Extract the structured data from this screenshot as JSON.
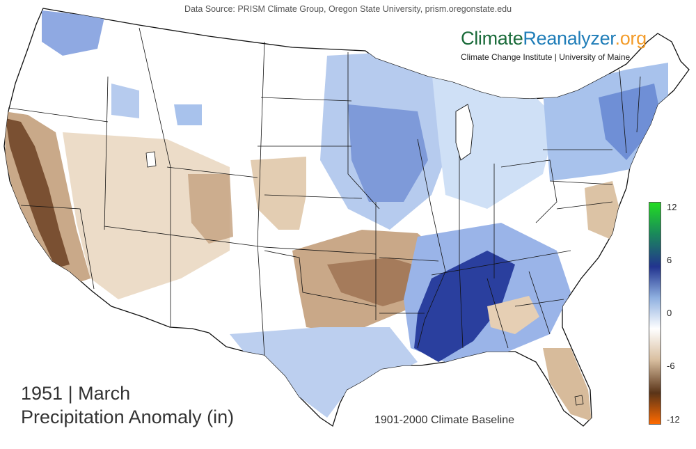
{
  "header": {
    "data_source": "Data Source: PRISM Climate Group, Oregon State University, prism.oregonstate.edu"
  },
  "brand": {
    "part1": "Climate",
    "part2": "Reanalyzer",
    "part3": ".org",
    "subtitle": "Climate Change Institute | University of Maine",
    "colors": {
      "climate": "#1a6b3a",
      "reanalyzer": "#1f7db8",
      "org": "#f39c2a"
    }
  },
  "titles": {
    "year_month": "1951 | March",
    "variable": "Precipitation Anomaly (in)",
    "baseline": "1901-2000 Climate Baseline"
  },
  "colorbar": {
    "ticks": [
      "12",
      "6",
      "0",
      "-6",
      "-12"
    ],
    "colors_top_to_bottom": [
      "#22dd22",
      "#1a8a5a",
      "#22348f",
      "#8fb0e0",
      "#ffffff",
      "#d9bfa0",
      "#5a3418",
      "#ff6a00"
    ]
  },
  "map": {
    "region": "Contiguous United States",
    "anomaly_colors": {
      "wet_strong": "#2a3f9e",
      "wet": "#6f8fd6",
      "wet_light": "#cfe0f6",
      "neutral": "#ffffff",
      "dry_light": "#e8d5bd",
      "dry": "#bd9d7c",
      "dry_strong": "#6b4428"
    }
  }
}
